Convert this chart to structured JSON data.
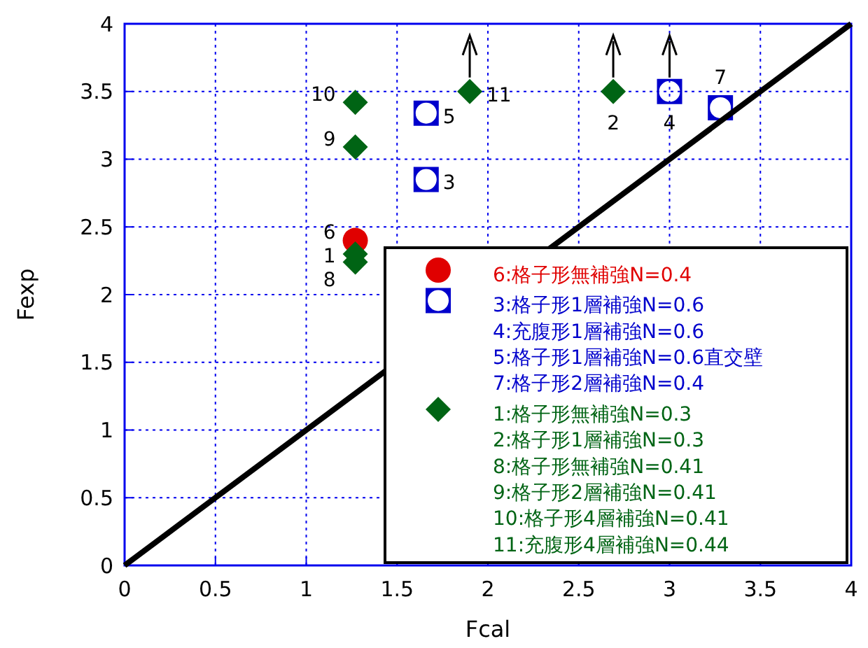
{
  "chart_data": {
    "type": "scatter",
    "xlabel": "Fcal",
    "ylabel": "Fexp",
    "xlim": [
      0,
      4
    ],
    "ylim": [
      0,
      4
    ],
    "xticks": [
      0,
      0.5,
      1,
      1.5,
      2,
      2.5,
      3,
      3.5,
      4
    ],
    "yticks": [
      0,
      0.5,
      1,
      1.5,
      2,
      2.5,
      3,
      3.5,
      4
    ],
    "grid": true,
    "legend": "bottom right",
    "series": [
      {
        "name": "6:格子形無補強N=0.4",
        "color": "#e00000",
        "marker": "circle",
        "x": [
          1.27
        ],
        "values": [
          2.4
        ]
      },
      {
        "name": "3:格子形1層補強N=0.6\n4:充腹形1層補強N=0.6\n5:格子形1層補強N=0.6直交壁\n7:格子形2層補強N=0.4",
        "color": "#0000cc",
        "marker": "square",
        "x": [
          1.66,
          3.0,
          1.66,
          3.28
        ],
        "values": [
          2.85,
          3.5,
          3.34,
          3.38
        ]
      },
      {
        "name": "1:格子形無補強N=0.3\n2:格子形1層補強N=0.3\n8:格子形無補強N=0.41\n9:格子形2層補強N=0.41\n10:格子形4層補強N=0.41\n11:充腹形4層補強N=0.44",
        "color": "#006414",
        "marker": "diamond",
        "x": [
          1.27,
          2.69,
          1.27,
          1.27,
          1.27,
          1.9
        ],
        "values": [
          2.3,
          3.5,
          2.24,
          3.09,
          3.42,
          3.5
        ]
      },
      {
        "type": "line",
        "color": "#000000",
        "line_style": "solid",
        "marker": "none",
        "x": [
          0,
          4
        ],
        "values": [
          0,
          4
        ]
      }
    ],
    "annotations": [
      {
        "text": "6",
        "x": 1.27,
        "y": 2.4
      },
      {
        "text": "1",
        "x": 1.27,
        "y": 2.3
      },
      {
        "text": "8",
        "x": 1.27,
        "y": 2.24
      },
      {
        "text": "9",
        "x": 1.27,
        "y": 3.09
      },
      {
        "text": "10",
        "x": 1.27,
        "y": 3.42
      },
      {
        "text": "5",
        "x": 1.66,
        "y": 3.34
      },
      {
        "text": "3",
        "x": 1.66,
        "y": 2.85
      },
      {
        "text": "11",
        "x": 1.9,
        "y": 3.5
      },
      {
        "text": "2",
        "x": 2.69,
        "y": 3.5
      },
      {
        "text": "4",
        "x": 3.0,
        "y": 3.5
      },
      {
        "text": "7",
        "x": 3.28,
        "y": 3.38
      }
    ]
  }
}
